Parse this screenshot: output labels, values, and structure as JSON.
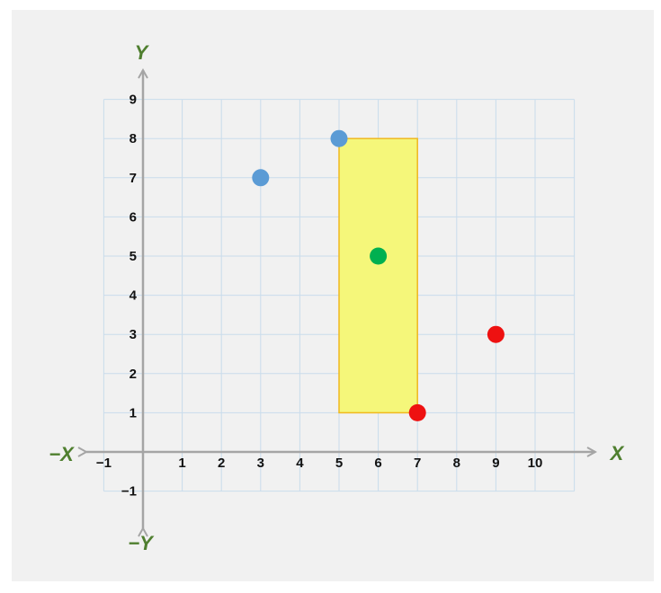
{
  "chart_data": {
    "type": "scatter",
    "title": "",
    "xlabel": "X",
    "xlabel_negative": "−X",
    "ylabel": "Y",
    "ylabel_negative": "−Y",
    "xlim": [
      -1,
      11
    ],
    "ylim": [
      -1,
      9
    ],
    "x_ticks": [
      -1,
      1,
      2,
      3,
      4,
      5,
      6,
      7,
      8,
      9,
      10
    ],
    "y_ticks": [
      -1,
      1,
      2,
      3,
      4,
      5,
      6,
      7,
      8,
      9
    ],
    "grid": true,
    "rectangle": {
      "x0": 5,
      "y0": 1,
      "x1": 7,
      "y1": 8,
      "fill": "#f5f77a",
      "stroke": "#f0b820"
    },
    "series": [
      {
        "color": "#5b9bd5",
        "points": [
          {
            "x": 3,
            "y": 7
          },
          {
            "x": 5,
            "y": 8
          }
        ]
      },
      {
        "color": "#00b050",
        "points": [
          {
            "x": 6,
            "y": 5
          }
        ]
      },
      {
        "color": "#ee1111",
        "points": [
          {
            "x": 7,
            "y": 1
          },
          {
            "x": 9,
            "y": 3
          }
        ]
      }
    ],
    "colors": {
      "grid": "#c9dcec",
      "axis": "#a5a5a5",
      "tick_text": "#111111",
      "axis_name": "#4f7f2f",
      "panel": "#f1f1f1"
    }
  }
}
